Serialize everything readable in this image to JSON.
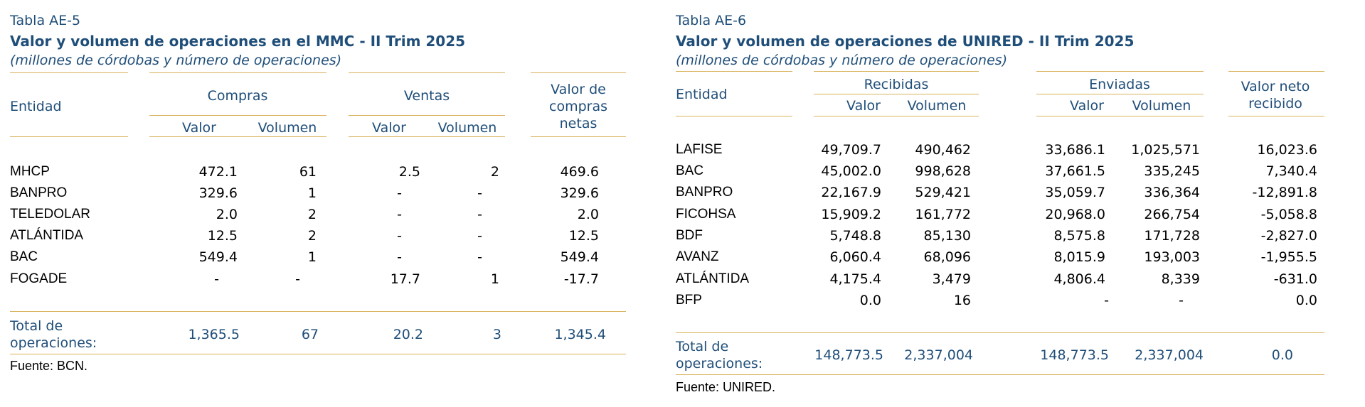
{
  "left": {
    "table_number": "Tabla AE-5",
    "title": "Valor y volumen de operaciones en el MMC - II Trim 2025",
    "subtitle": "(millones de córdobas y número de operaciones)",
    "header": {
      "entity": "Entidad",
      "compras": "Compras",
      "ventas": "Ventas",
      "valor": "Valor",
      "volumen": "Volumen",
      "net_line1": "Valor de",
      "net_line2": "compras",
      "net_line3": "netas"
    },
    "rows": [
      {
        "entity": "MHCP",
        "compras_valor": "472.1",
        "compras_volumen": "61",
        "ventas_valor": "2.5",
        "ventas_volumen": "2",
        "neto": "469.6"
      },
      {
        "entity": "BANPRO",
        "compras_valor": "329.6",
        "compras_volumen": "1",
        "ventas_valor": "-",
        "ventas_volumen": "-",
        "neto": "329.6"
      },
      {
        "entity": "TELEDOLAR",
        "compras_valor": "2.0",
        "compras_volumen": "2",
        "ventas_valor": "-",
        "ventas_volumen": "-",
        "neto": "2.0"
      },
      {
        "entity": "ATLÁNTIDA",
        "compras_valor": "12.5",
        "compras_volumen": "2",
        "ventas_valor": "-",
        "ventas_volumen": "-",
        "neto": "12.5"
      },
      {
        "entity": "BAC",
        "compras_valor": "549.4",
        "compras_volumen": "1",
        "ventas_valor": "-",
        "ventas_volumen": "-",
        "neto": "549.4"
      },
      {
        "entity": "FOGADE",
        "compras_valor": "-",
        "compras_volumen": "-",
        "ventas_valor": "17.7",
        "ventas_volumen": "1",
        "neto": "-17.7"
      }
    ],
    "total": {
      "label_line1": "Total de",
      "label_line2": "operaciones:",
      "compras_valor": "1,365.5",
      "compras_volumen": "67",
      "ventas_valor": "20.2",
      "ventas_volumen": "3",
      "neto": "1,345.4"
    },
    "source": "Fuente: BCN."
  },
  "right": {
    "table_number": "Tabla AE-6",
    "title": "Valor y volumen de operaciones de UNIRED - II Trim 2025",
    "subtitle": "(millones de córdobas y número de operaciones)",
    "header": {
      "entity": "Entidad",
      "recibidas": "Recibidas",
      "enviadas": "Enviadas",
      "valor": "Valor",
      "volumen": "Volumen",
      "net_line1": "Valor neto",
      "net_line2": "recibido"
    },
    "rows": [
      {
        "entity": "LAFISE",
        "rec_valor": "49,709.7",
        "rec_volumen": "490,462",
        "env_valor": "33,686.1",
        "env_volumen": "1,025,571",
        "neto": "16,023.6"
      },
      {
        "entity": "BAC",
        "rec_valor": "45,002.0",
        "rec_volumen": "998,628",
        "env_valor": "37,661.5",
        "env_volumen": "335,245",
        "neto": "7,340.4"
      },
      {
        "entity": "BANPRO",
        "rec_valor": "22,167.9",
        "rec_volumen": "529,421",
        "env_valor": "35,059.7",
        "env_volumen": "336,364",
        "neto": "-12,891.8"
      },
      {
        "entity": "FICOHSA",
        "rec_valor": "15,909.2",
        "rec_volumen": "161,772",
        "env_valor": "20,968.0",
        "env_volumen": "266,754",
        "neto": "-5,058.8"
      },
      {
        "entity": "BDF",
        "rec_valor": "5,748.8",
        "rec_volumen": "85,130",
        "env_valor": "8,575.8",
        "env_volumen": "171,728",
        "neto": "-2,827.0"
      },
      {
        "entity": "AVANZ",
        "rec_valor": "6,060.4",
        "rec_volumen": "68,096",
        "env_valor": "8,015.9",
        "env_volumen": "193,003",
        "neto": "-1,955.5"
      },
      {
        "entity": "ATLÁNTIDA",
        "rec_valor": "4,175.4",
        "rec_volumen": "3,479",
        "env_valor": "4,806.4",
        "env_volumen": "8,339",
        "neto": "-631.0"
      },
      {
        "entity": "BFP",
        "rec_valor": "0.0",
        "rec_volumen": "16",
        "env_valor": "-",
        "env_volumen": "-",
        "neto": "0.0"
      }
    ],
    "total": {
      "label_line1": "Total de",
      "label_line2": "operaciones:",
      "rec_valor": "148,773.5",
      "rec_volumen": "2,337,004",
      "env_valor": "148,773.5",
      "env_volumen": "2,337,004",
      "neto": "0.0"
    },
    "source": "Fuente: UNIRED."
  },
  "colors": {
    "heading": "#1f4e79",
    "rule": "#d9b25b",
    "text": "#000000"
  }
}
